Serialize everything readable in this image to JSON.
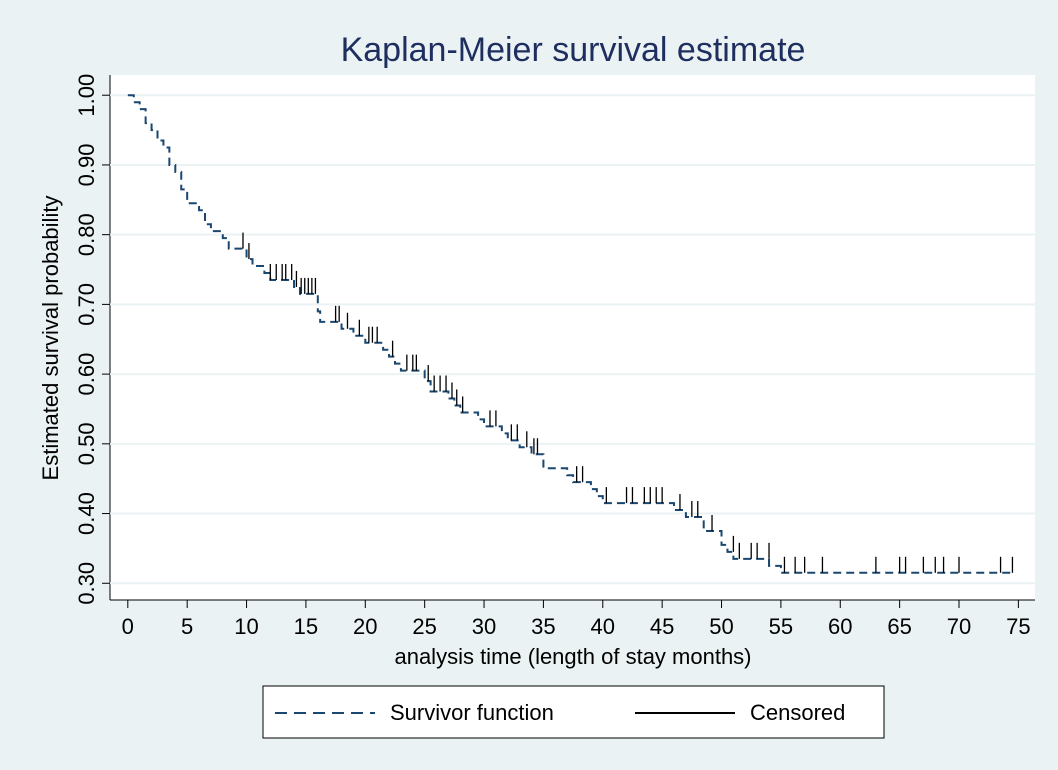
{
  "chart_data": {
    "type": "kaplan-meier",
    "title": "Kaplan-Meier survival estimate",
    "x_label": "analysis time (length of stay months)",
    "y_label": "Estimated survival probability",
    "xlim": [
      -1.5,
      76.4
    ],
    "ylim": [
      0.276,
      1.029
    ],
    "xticks": [
      0,
      5,
      10,
      15,
      20,
      25,
      30,
      35,
      40,
      45,
      50,
      55,
      60,
      65,
      70,
      75
    ],
    "yticks": [
      {
        "value": 0.3,
        "label": "0.30"
      },
      {
        "value": 0.4,
        "label": "0.40"
      },
      {
        "value": 0.5,
        "label": "0.50"
      },
      {
        "value": 0.6,
        "label": "0.60"
      },
      {
        "value": 0.7,
        "label": "0.70"
      },
      {
        "value": 0.8,
        "label": "0.80"
      },
      {
        "value": 0.9,
        "label": "0.90"
      },
      {
        "value": 1,
        "label": "1.00"
      }
    ],
    "grid": true,
    "series": [
      {
        "name": "Survivor function",
        "color": "#1a476f",
        "x": [
          0,
          0.5,
          1,
          1.5,
          2,
          2.5,
          3,
          3.5,
          4,
          4.5,
          5,
          6,
          6.5,
          7,
          8,
          8.5,
          10,
          10.5,
          11.5,
          12,
          14,
          14.5,
          16,
          16.2,
          18,
          19,
          20,
          21.5,
          22,
          22.5,
          23,
          25,
          25.5,
          27,
          27.5,
          28,
          29.5,
          30,
          31.5,
          32,
          33,
          34,
          35,
          37,
          37.5,
          39,
          39.5,
          40,
          46,
          47,
          48.5,
          50,
          50.5,
          51,
          54,
          55,
          74.7
        ],
        "values": [
          1,
          0.99,
          0.98,
          0.96,
          0.95,
          0.935,
          0.925,
          0.9,
          0.89,
          0.865,
          0.845,
          0.835,
          0.815,
          0.805,
          0.795,
          0.78,
          0.765,
          0.755,
          0.745,
          0.735,
          0.725,
          0.715,
          0.69,
          0.675,
          0.665,
          0.655,
          0.645,
          0.635,
          0.625,
          0.615,
          0.605,
          0.59,
          0.575,
          0.565,
          0.555,
          0.545,
          0.535,
          0.525,
          0.515,
          0.505,
          0.495,
          0.485,
          0.465,
          0.455,
          0.445,
          0.435,
          0.425,
          0.415,
          0.405,
          0.395,
          0.375,
          0.355,
          0.345,
          0.335,
          0.325,
          0.315,
          0.315
        ]
      },
      {
        "name": "Censored",
        "color": "#000000",
        "x": [
          9.7,
          10.2,
          12,
          12.5,
          13,
          13.3,
          13.8,
          14.2,
          14.6,
          14.9,
          15.2,
          15.5,
          15.8,
          17.5,
          17.8,
          18.5,
          19.5,
          20.3,
          20.6,
          21,
          22.3,
          23.5,
          24,
          24.3,
          25.3,
          25.8,
          26.3,
          26.8,
          27.3,
          27.7,
          28.2,
          30.5,
          31,
          32.3,
          32.8,
          33.6,
          34.2,
          34.5,
          37.8,
          38.3,
          40.3,
          42,
          42.5,
          43.5,
          44,
          44.5,
          45,
          46.5,
          47.5,
          48,
          49.2,
          51,
          51.5,
          52.5,
          53,
          54,
          55.3,
          56.2,
          57,
          58.5,
          63,
          65,
          65.5,
          67,
          68,
          68.7,
          70,
          73.5,
          74.5
        ],
        "values": [
          0.78,
          0.765,
          0.735,
          0.735,
          0.735,
          0.735,
          0.735,
          0.725,
          0.715,
          0.715,
          0.715,
          0.715,
          0.715,
          0.675,
          0.675,
          0.665,
          0.655,
          0.645,
          0.645,
          0.645,
          0.625,
          0.605,
          0.605,
          0.605,
          0.59,
          0.575,
          0.575,
          0.575,
          0.565,
          0.555,
          0.545,
          0.525,
          0.525,
          0.505,
          0.505,
          0.495,
          0.485,
          0.485,
          0.445,
          0.445,
          0.415,
          0.415,
          0.415,
          0.415,
          0.415,
          0.415,
          0.415,
          0.405,
          0.395,
          0.395,
          0.375,
          0.345,
          0.335,
          0.335,
          0.335,
          0.335,
          0.315,
          0.315,
          0.315,
          0.315,
          0.315,
          0.315,
          0.315,
          0.315,
          0.315,
          0.315,
          0.315,
          0.315,
          0.315
        ]
      }
    ]
  }
}
